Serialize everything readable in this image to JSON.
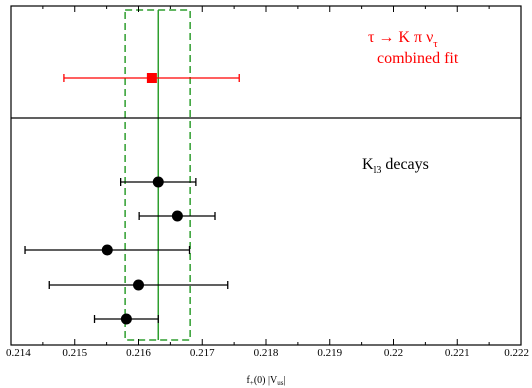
{
  "chart_data": {
    "type": "scatter",
    "xlim": [
      0.214,
      0.222
    ],
    "x_ticks": [
      "0.214",
      "0.215",
      "0.216",
      "0.217",
      "0.218",
      "0.219",
      "0.22",
      "0.221",
      "0.222"
    ],
    "xlabel_main": "f",
    "xlabel_sub1": "+",
    "xlabel_mid": "(0) |V",
    "xlabel_sub2": "us",
    "xlabel_end": "|",
    "grid": false,
    "band": {
      "center": 0.21631,
      "low": 0.21579,
      "high": 0.21681,
      "color": "#2e9e2e"
    },
    "panels": {
      "tau": {
        "label_line1_a": "τ → K π ν",
        "label_line1_sub": "τ",
        "label_line2": "combined fit",
        "color": "#ff0000",
        "points": [
          {
            "value": 0.21621,
            "err_low": 0.21483,
            "err_high": 0.21758
          }
        ]
      },
      "kl3": {
        "label_main": "K",
        "label_sub": "l3",
        "label_rest": " decays",
        "color": "#000000",
        "points": [
          {
            "value": 0.21631,
            "err_low": 0.21572,
            "err_high": 0.2169
          },
          {
            "value": 0.21661,
            "err_low": 0.21601,
            "err_high": 0.2172
          },
          {
            "value": 0.21551,
            "err_low": 0.21422,
            "err_high": 0.2168
          },
          {
            "value": 0.216,
            "err_low": 0.2146,
            "err_high": 0.2174
          },
          {
            "value": 0.21581,
            "err_low": 0.21531,
            "err_high": 0.21631
          }
        ]
      }
    }
  }
}
